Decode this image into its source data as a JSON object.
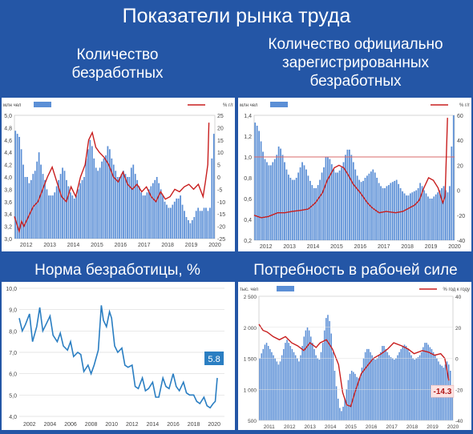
{
  "page_title": "Показатели рынка труда",
  "panels": {
    "unemployed": {
      "title_line1": "Количество",
      "title_line2": "безработных"
    },
    "registered": {
      "title_line1": "Количество официально",
      "title_line2": "зарегистрированных",
      "title_line3": "безработных"
    },
    "rate": {
      "title": "Норма безработицы, %"
    },
    "demand": {
      "title": "Потребность в рабочей силе"
    }
  },
  "colors": {
    "background": "#2456a6",
    "bar": "#5b8fd6",
    "line_red": "#c81e1e",
    "line_blue": "#2a7ec2",
    "ref_line": "#d86a6a"
  },
  "chart_data": [
    {
      "id": "unemployed",
      "type": "bar",
      "left_unit": "млн чел",
      "right_unit": "% г/г",
      "left_ticks": [
        "3,0",
        "3,2",
        "3,4",
        "3,6",
        "3,8",
        "4,0",
        "4,2",
        "4,4",
        "4,6",
        "4,8",
        "5,0"
      ],
      "right_ticks": [
        "-25",
        "-20",
        "-15",
        "-10",
        "-5",
        "0",
        "5",
        "10",
        "15",
        "20",
        "25"
      ],
      "x_ticks": [
        "2012",
        "2013",
        "2014",
        "2015",
        "2016",
        "2017",
        "2018",
        "2019",
        "2020"
      ],
      "ylim": [
        3.0,
        5.0
      ],
      "y2lim": [
        -25,
        25
      ],
      "bars": {
        "start": 2012,
        "step": 0.0833,
        "values": [
          4.75,
          4.7,
          4.65,
          4.45,
          4.2,
          4.0,
          4.0,
          3.9,
          3.95,
          4.05,
          4.1,
          4.25,
          4.4,
          4.2,
          4.05,
          3.95,
          3.8,
          3.7,
          3.7,
          3.7,
          3.75,
          3.85,
          3.95,
          4.05,
          4.15,
          4.1,
          3.95,
          3.85,
          3.75,
          3.7,
          3.65,
          3.7,
          3.8,
          3.9,
          3.95,
          4.0,
          4.3,
          4.45,
          4.6,
          4.5,
          4.3,
          4.15,
          4.1,
          4.15,
          4.25,
          4.3,
          4.35,
          4.5,
          4.45,
          4.3,
          4.2,
          4.1,
          4.0,
          4.0,
          4.05,
          4.1,
          4.05,
          4.0,
          4.0,
          4.15,
          4.2,
          4.05,
          3.95,
          3.85,
          3.75,
          3.7,
          3.7,
          3.75,
          3.8,
          3.85,
          3.9,
          3.95,
          4.0,
          3.9,
          3.8,
          3.7,
          3.6,
          3.55,
          3.5,
          3.5,
          3.55,
          3.6,
          3.65,
          3.65,
          3.7,
          3.55,
          3.45,
          3.35,
          3.3,
          3.25,
          3.3,
          3.35,
          3.45,
          3.5,
          3.45,
          3.45,
          3.5,
          3.5,
          3.45,
          3.5,
          4.3,
          4.7
        ]
      },
      "line": {
        "name": "% г/г",
        "x": [
          2012.0,
          2012.1,
          2012.2,
          2012.3,
          2012.4,
          2012.6,
          2012.8,
          2013.0,
          2013.2,
          2013.4,
          2013.6,
          2013.8,
          2014.0,
          2014.2,
          2014.4,
          2014.6,
          2014.8,
          2015.0,
          2015.15,
          2015.3,
          2015.45,
          2015.6,
          2015.8,
          2016.0,
          2016.2,
          2016.4,
          2016.6,
          2016.8,
          2017.0,
          2017.2,
          2017.4,
          2017.6,
          2017.8,
          2018.0,
          2018.2,
          2018.4,
          2018.6,
          2018.8,
          2019.0,
          2019.2,
          2019.4,
          2019.6,
          2019.8,
          2020.0,
          2020.1,
          2020.2,
          2020.25
        ],
        "y": [
          -16,
          -19,
          -22,
          -18,
          -20,
          -16,
          -12,
          -10,
          -5,
          0,
          4,
          -2,
          -8,
          -10,
          -4,
          -8,
          0,
          5,
          15,
          18,
          12,
          10,
          8,
          5,
          0,
          -2,
          2,
          -3,
          -5,
          -3,
          -6,
          -4,
          -8,
          -10,
          -6,
          -9,
          -8,
          -5,
          -6,
          -4,
          -3,
          -5,
          -3,
          -8,
          -2,
          5,
          22
        ]
      }
    },
    {
      "id": "registered",
      "type": "bar",
      "left_unit": "млн чел",
      "right_unit": "% г/г",
      "left_ticks": [
        "0,2",
        "0,4",
        "0,6",
        "0,8",
        "1,0",
        "1,2",
        "1,4"
      ],
      "right_ticks": [
        "-40",
        "-20",
        "0",
        "20",
        "40",
        "60"
      ],
      "x_ticks": [
        "2012",
        "2013",
        "2014",
        "2015",
        "2016",
        "2017",
        "2018",
        "2019",
        "2020"
      ],
      "ylim": [
        0.2,
        1.4
      ],
      "y2lim": [
        -40,
        60
      ],
      "reference_line": 1.0,
      "bars": {
        "start": 2012,
        "step": 0.0833,
        "values": [
          1.33,
          1.3,
          1.25,
          1.15,
          1.05,
          0.98,
          0.95,
          0.92,
          0.92,
          0.95,
          0.98,
          1.02,
          1.1,
          1.08,
          1.02,
          0.95,
          0.88,
          0.83,
          0.8,
          0.78,
          0.78,
          0.8,
          0.85,
          0.9,
          0.95,
          0.92,
          0.88,
          0.82,
          0.77,
          0.73,
          0.7,
          0.7,
          0.73,
          0.78,
          0.85,
          0.9,
          1.0,
          1.0,
          0.98,
          0.93,
          0.88,
          0.85,
          0.85,
          0.87,
          0.9,
          0.95,
          1.02,
          1.07,
          1.07,
          1.02,
          0.95,
          0.88,
          0.82,
          0.78,
          0.76,
          0.77,
          0.8,
          0.82,
          0.84,
          0.86,
          0.88,
          0.85,
          0.8,
          0.75,
          0.72,
          0.7,
          0.7,
          0.72,
          0.73,
          0.75,
          0.76,
          0.77,
          0.78,
          0.74,
          0.7,
          0.67,
          0.65,
          0.63,
          0.63,
          0.65,
          0.66,
          0.67,
          0.68,
          0.7,
          0.75,
          0.72,
          0.68,
          0.65,
          0.62,
          0.6,
          0.6,
          0.62,
          0.64,
          0.66,
          0.68,
          0.7,
          0.72,
          0.68,
          0.66,
          0.72,
          1.1,
          1.4
        ]
      },
      "line": {
        "name": "% г/г",
        "x": [
          2012.0,
          2012.3,
          2012.6,
          2013.0,
          2013.3,
          2013.6,
          2014.0,
          2014.3,
          2014.6,
          2014.9,
          2015.1,
          2015.4,
          2015.6,
          2015.8,
          2016.0,
          2016.2,
          2016.5,
          2016.8,
          2017.0,
          2017.3,
          2017.6,
          2018.0,
          2018.3,
          2018.6,
          2018.8,
          2019.0,
          2019.2,
          2019.4,
          2019.6,
          2019.8,
          2020.0,
          2020.1,
          2020.2
        ],
        "y": [
          -20,
          -22,
          -21,
          -18,
          -18,
          -17,
          -16,
          -15,
          -10,
          -2,
          8,
          18,
          20,
          18,
          12,
          5,
          -2,
          -10,
          -14,
          -18,
          -17,
          -18,
          -17,
          -14,
          -12,
          -8,
          2,
          10,
          8,
          2,
          -10,
          -5,
          58
        ]
      }
    },
    {
      "id": "rate",
      "type": "line",
      "y_ticks": [
        "4,0",
        "5,0",
        "6,0",
        "7,0",
        "8,0",
        "9,0",
        "10,0"
      ],
      "x_ticks": [
        "2002",
        "2004",
        "2006",
        "2008",
        "2010",
        "2012",
        "2014",
        "2016",
        "2018",
        "2020"
      ],
      "ylim": [
        4.0,
        10.0
      ],
      "last_value_label": "5.8",
      "series": [
        {
          "x": [
            2001.0,
            2001.3,
            2001.6,
            2002.0,
            2002.3,
            2002.7,
            2003.0,
            2003.3,
            2003.7,
            2004.0,
            2004.3,
            2004.7,
            2005.0,
            2005.3,
            2005.7,
            2006.0,
            2006.3,
            2006.7,
            2007.0,
            2007.3,
            2007.7,
            2008.0,
            2008.3,
            2008.7,
            2009.0,
            2009.2,
            2009.5,
            2009.8,
            2010.0,
            2010.3,
            2010.6,
            2011.0,
            2011.3,
            2011.6,
            2012.0,
            2012.3,
            2012.6,
            2013.0,
            2013.3,
            2013.6,
            2014.0,
            2014.3,
            2014.6,
            2015.0,
            2015.3,
            2015.6,
            2016.0,
            2016.3,
            2016.6,
            2017.0,
            2017.3,
            2017.6,
            2018.0,
            2018.3,
            2018.6,
            2019.0,
            2019.3,
            2019.6,
            2019.9,
            2020.1,
            2020.3
          ],
          "y": [
            8.6,
            8.0,
            8.3,
            8.8,
            7.5,
            8.2,
            9.1,
            8.0,
            8.4,
            8.7,
            7.8,
            7.5,
            7.9,
            7.3,
            7.1,
            7.5,
            6.8,
            7.0,
            6.9,
            6.1,
            6.4,
            6.0,
            6.4,
            7.1,
            9.2,
            8.5,
            8.2,
            8.9,
            8.6,
            7.3,
            7.0,
            7.2,
            6.4,
            6.3,
            6.4,
            5.4,
            5.3,
            5.8,
            5.2,
            5.3,
            5.6,
            4.9,
            4.9,
            5.8,
            5.4,
            5.3,
            6.0,
            5.4,
            5.2,
            5.6,
            5.1,
            5.0,
            5.0,
            4.7,
            4.6,
            4.9,
            4.5,
            4.4,
            4.6,
            4.7,
            5.8
          ]
        }
      ]
    },
    {
      "id": "demand",
      "type": "bar",
      "left_unit": "тыс. чел",
      "right_unit": "% год к году",
      "left_ticks": [
        "500",
        "1 000",
        "1 500",
        "2 000",
        "2 500"
      ],
      "right_ticks": [
        "-40",
        "-20",
        "0",
        "20",
        "40"
      ],
      "x_ticks": [
        "2011",
        "2012",
        "2013",
        "2014",
        "2015",
        "2016",
        "2017",
        "2018",
        "2019",
        "2020"
      ],
      "ylim": [
        500,
        2500
      ],
      "y2lim": [
        -40,
        40
      ],
      "last_value_label": "-14.3",
      "bars": {
        "start": 2011,
        "step": 0.0833,
        "values": [
          1500,
          1580,
          1650,
          1720,
          1750,
          1700,
          1650,
          1600,
          1550,
          1500,
          1450,
          1400,
          1450,
          1550,
          1650,
          1750,
          1800,
          1750,
          1700,
          1650,
          1600,
          1550,
          1500,
          1450,
          1550,
          1700,
          1850,
          1950,
          2000,
          1950,
          1850,
          1750,
          1650,
          1550,
          1500,
          1480,
          1600,
          1750,
          1950,
          2150,
          2200,
          2100,
          1900,
          1600,
          1300,
          1050,
          850,
          700,
          650,
          720,
          850,
          1000,
          1150,
          1250,
          1300,
          1280,
          1250,
          1200,
          1180,
          1200,
          1350,
          1500,
          1600,
          1650,
          1650,
          1600,
          1550,
          1500,
          1480,
          1500,
          1550,
          1600,
          1700,
          1700,
          1650,
          1600,
          1550,
          1520,
          1500,
          1480,
          1500,
          1550,
          1600,
          1650,
          1700,
          1720,
          1700,
          1650,
          1600,
          1550,
          1500,
          1480,
          1500,
          1520,
          1550,
          1600,
          1680,
          1750,
          1750,
          1720,
          1680,
          1650,
          1600,
          1550,
          1500,
          1450,
          1400,
          1380,
          1350,
          1400,
          1450,
          1400,
          1300,
          1050
        ]
      },
      "line": {
        "name": "% год к году",
        "x": [
          2011.0,
          2011.2,
          2011.4,
          2011.7,
          2012.0,
          2012.3,
          2012.6,
          2012.9,
          2013.2,
          2013.5,
          2013.8,
          2014.0,
          2014.3,
          2014.6,
          2014.9,
          2015.1,
          2015.3,
          2015.5,
          2015.7,
          2016.0,
          2016.3,
          2016.6,
          2017.0,
          2017.3,
          2017.6,
          2018.0,
          2018.3,
          2018.6,
          2019.0,
          2019.3,
          2019.6,
          2019.9,
          2020.1,
          2020.3
        ],
        "y": [
          22,
          18,
          17,
          14,
          12,
          14,
          10,
          8,
          5,
          10,
          7,
          10,
          12,
          6,
          -4,
          -22,
          -30,
          -31,
          -22,
          -10,
          -5,
          0,
          3,
          6,
          10,
          8,
          6,
          3,
          5,
          4,
          2,
          3,
          0,
          -14.3
        ]
      }
    }
  ]
}
